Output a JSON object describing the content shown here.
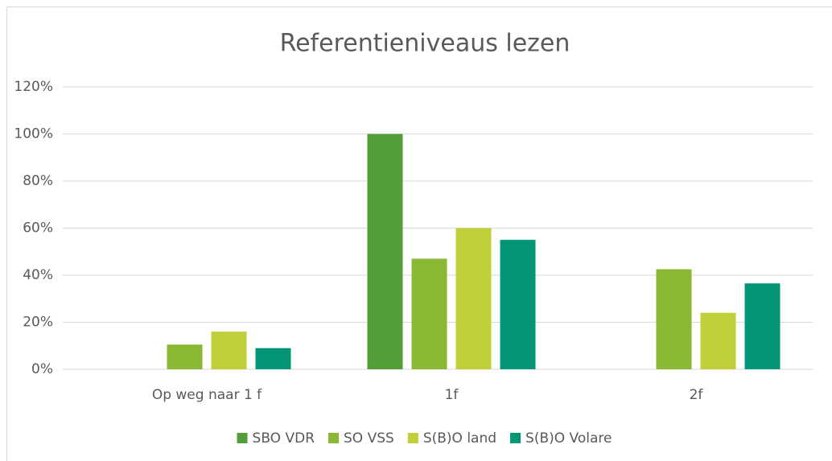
{
  "chart_data": {
    "type": "bar",
    "title": "Referentieniveaus lezen",
    "categories": [
      "Op weg naar 1 f",
      "1f",
      "2f"
    ],
    "series": [
      {
        "name": "SBO VDR",
        "color": "#549e39",
        "values": [
          0,
          100,
          0
        ]
      },
      {
        "name": "SO VSS",
        "color": "#8ab833",
        "values": [
          10.5,
          47,
          42.5
        ]
      },
      {
        "name": "S(B)O land",
        "color": "#c0cf3a",
        "values": [
          16,
          60,
          24
        ]
      },
      {
        "name": "S(B)O Volare",
        "color": "#029676",
        "values": [
          9,
          55,
          36.5
        ]
      }
    ],
    "ylim": [
      0,
      120
    ],
    "yticks": [
      {
        "value": 0,
        "label": "0%"
      },
      {
        "value": 20,
        "label": "20%"
      },
      {
        "value": 40,
        "label": "40%"
      },
      {
        "value": 60,
        "label": "60%"
      },
      {
        "value": 80,
        "label": "80%"
      },
      {
        "value": 100,
        "label": "100%"
      },
      {
        "value": 120,
        "label": "120%"
      }
    ],
    "grid": true,
    "legend": "bottom"
  }
}
